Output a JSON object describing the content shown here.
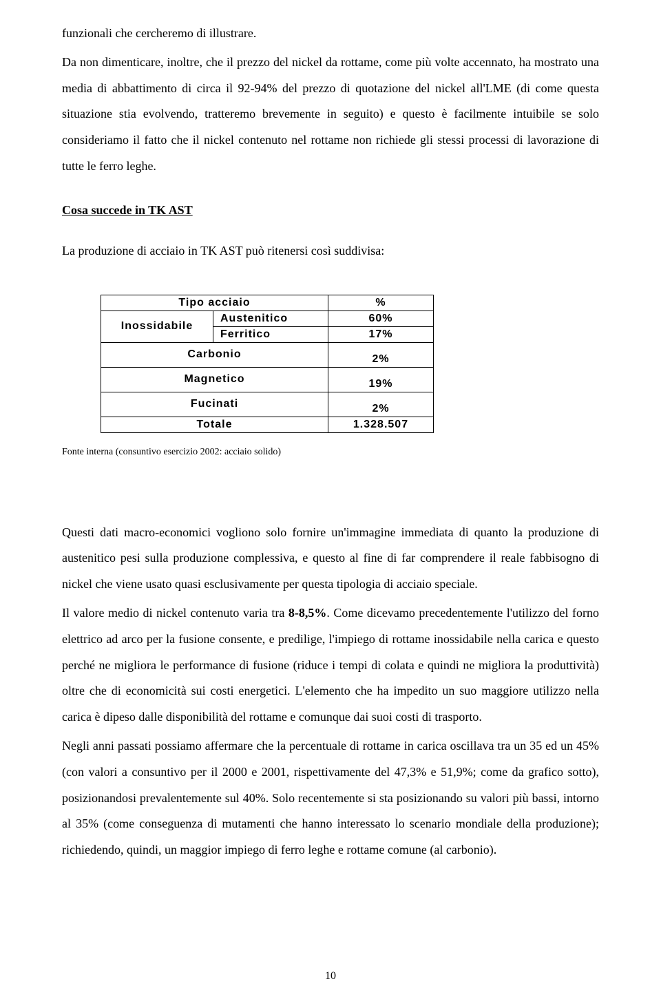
{
  "para_top_1": "funzionali che cercheremo di illustrare.",
  "para_top_2": "Da non dimenticare, inoltre, che il prezzo del nickel da rottame, come più volte accennato, ha mostrato una media di abbattimento di circa il 92-94% del prezzo di quotazione del nickel all'LME (di come questa situazione stia evolvendo, tratteremo brevemente in seguito) e questo è facilmente intuibile se solo consideriamo il fatto che il nickel contenuto nel rottame non richiede gli stessi processi di lavorazione di tutte le ferro leghe.",
  "heading": "Cosa succede in TK AST",
  "intro": "La produzione di acciaio in TK AST può ritenersi così suddivisa:",
  "table": {
    "header_type": "Tipo acciaio",
    "header_pct": "%",
    "inox_label": "Inossidabile",
    "austenitic_label": "Austenitico",
    "austenitic_pct": "60%",
    "ferritic_label": "Ferritico",
    "ferritic_pct": "17%",
    "carbon_label": "Carbonio",
    "carbon_pct": "2%",
    "magnetic_label": "Magnetico",
    "magnetic_pct": "19%",
    "forged_label": "Fucinati",
    "forged_pct": "2%",
    "total_label": "Totale",
    "total_value": "1.328.507"
  },
  "source": "Fonte interna (consuntivo esercizio 2002: acciaio solido)",
  "para_bottom_1": "Questi dati macro-economici vogliono solo fornire un'immagine immediata di quanto la produzione di austenitico pesi sulla produzione complessiva, e questo al fine di far comprendere il reale fabbisogno di nickel che viene usato quasi esclusivamente per questa tipologia di acciaio speciale.",
  "para_bottom_2a": "Il valore medio di nickel contenuto varia tra ",
  "para_bottom_2b": "8-8,5%",
  "para_bottom_2c": ". Come dicevamo precedentemente l'utilizzo del forno elettrico ad arco per la fusione consente, e predilige, l'impiego di rottame inossidabile nella carica e questo perché ne migliora le performance di fusione (riduce i tempi di colata e quindi ne migliora la produttività) oltre che di economicità sui costi energetici. L'elemento che ha impedito un suo maggiore utilizzo nella carica è dipeso dalle disponibilità del rottame e comunque dai suoi costi di trasporto.",
  "para_bottom_3": "Negli anni passati possiamo affermare che la percentuale di rottame in carica oscillava tra un 35 ed un 45% (con valori a consuntivo per il 2000 e 2001, rispettivamente del 47,3% e 51,9%; come da grafico sotto), posizionandosi prevalentemente sul 40%. Solo recentemente si sta posizionando su valori più bassi, intorno al 35% (come conseguenza di mutamenti che hanno interessato lo scenario mondiale della produzione); richiedendo, quindi, un maggior impiego di ferro leghe e rottame comune (al carbonio).",
  "page_number": "10"
}
